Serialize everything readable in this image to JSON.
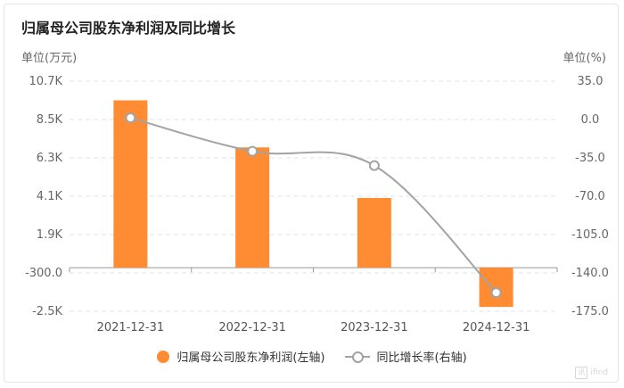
{
  "header": {
    "title": "归属母公司股东净利润及同比增长",
    "unit_left": "单位(万元)",
    "unit_right": "单位(%)"
  },
  "legend": {
    "bar_label": "归属母公司股东净利润(左轴)",
    "line_label": "同比增长率(右轴)"
  },
  "watermark": {
    "logo_char": "讯",
    "text": "ifind"
  },
  "colors": {
    "bar": "#ff8b33",
    "line": "#a3a3a3",
    "axis": "#999999",
    "grid": "#e3e3e3",
    "text": "#666666"
  },
  "chart_data": {
    "type": "bar",
    "categories": [
      "2021-12-31",
      "2022-12-31",
      "2023-12-31",
      "2024-12-31"
    ],
    "series": [
      {
        "name": "归属母公司股东净利润(左轴)",
        "type": "bar",
        "axis": "left",
        "values": [
          9600,
          6900,
          4000,
          -2250
        ]
      },
      {
        "name": "同比增长率(右轴)",
        "type": "line",
        "axis": "right",
        "values": [
          1.5,
          -29.0,
          -42.0,
          -158.0
        ]
      }
    ],
    "left_axis": {
      "label": "单位(万元)",
      "ticks": [
        "10.7K",
        "8.5K",
        "6.3K",
        "4.1K",
        "1.9K",
        "-300.0",
        "-2.5K"
      ],
      "ylim": [
        -2500,
        10700
      ]
    },
    "right_axis": {
      "label": "单位(%)",
      "ticks": [
        "35.0",
        "0.0",
        "-35.0",
        "-70.0",
        "-105.0",
        "-140.0",
        "-175.0"
      ],
      "ylim": [
        -175,
        35
      ]
    },
    "grid": true,
    "legend_position": "bottom"
  }
}
